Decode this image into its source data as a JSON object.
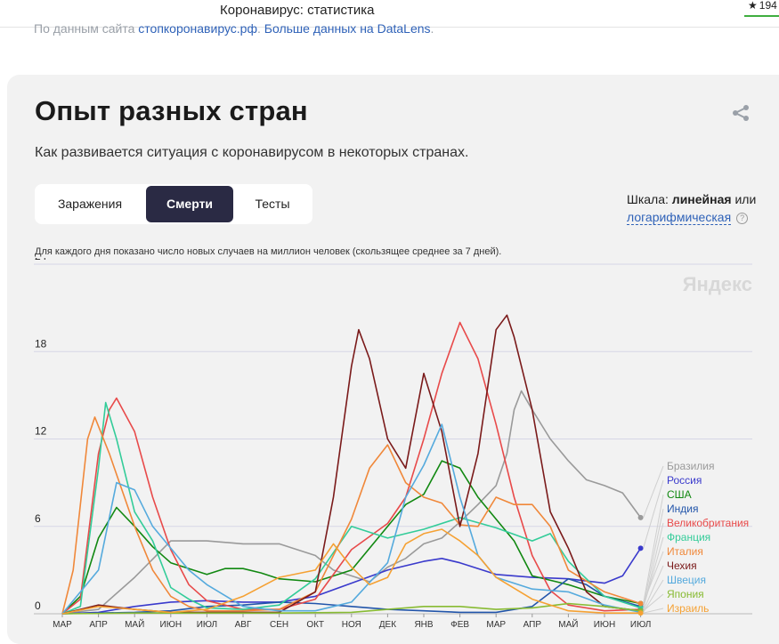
{
  "topbar": {
    "title": "Коронавирус: статистика",
    "stars": "194",
    "accent_color": "#3fae3f"
  },
  "source": {
    "prefix": "По данным сайта ",
    "link1": "стопкоронавирус.рф",
    "sep": ". ",
    "link2": "Больше данных на DataLens",
    "suffix": "."
  },
  "card": {
    "title": "Опыт разных стран",
    "subtitle": "Как развивается ситуация с коронавирусом в некоторых странах.",
    "tabs": [
      {
        "label": "Заражения",
        "active": false
      },
      {
        "label": "Смерти",
        "active": true
      },
      {
        "label": "Тесты",
        "active": false
      }
    ],
    "scale": {
      "prefix": "Шкала: ",
      "linear": "линейная",
      "or": " или",
      "log": "логарифмическая",
      "help": "?"
    },
    "note": "Для каждого дня показано число новых случаев на миллион человек (скользящее среднее за 7 дней).",
    "watermark": "Яндекс"
  },
  "chart_data": {
    "type": "line",
    "ylim": [
      0,
      24
    ],
    "yticks": [
      "0",
      "6",
      "12",
      "18",
      "24"
    ],
    "xticks": [
      "МАР",
      "АПР",
      "МАЙ",
      "ИЮН",
      "ИЮЛ",
      "АВГ",
      "СЕН",
      "ОКТ",
      "НОЯ",
      "ДЕК",
      "ЯНВ",
      "ФЕВ",
      "МАР",
      "АПР",
      "МАЙ",
      "ИЮН",
      "ИЮЛ"
    ],
    "grid": true,
    "legend_position": "right",
    "series": [
      {
        "name": "Бразилия",
        "color": "#9a9a9a",
        "end_marker": true,
        "points": [
          [
            0,
            0
          ],
          [
            1,
            0.3
          ],
          [
            2,
            2.5
          ],
          [
            3,
            5
          ],
          [
            4,
            5
          ],
          [
            5,
            4.8
          ],
          [
            6,
            4.8
          ],
          [
            7,
            4
          ],
          [
            7.5,
            3
          ],
          [
            8,
            2.6
          ],
          [
            8.5,
            2.2
          ],
          [
            9,
            3.2
          ],
          [
            9.5,
            3.8
          ],
          [
            10,
            4.8
          ],
          [
            10.5,
            5.2
          ],
          [
            11,
            6.3
          ],
          [
            11.5,
            7.5
          ],
          [
            12,
            8.8
          ],
          [
            12.3,
            11
          ],
          [
            12.5,
            14
          ],
          [
            12.7,
            15.3
          ],
          [
            13,
            14
          ],
          [
            13.5,
            12
          ],
          [
            14,
            10.5
          ],
          [
            14.5,
            9.2
          ],
          [
            15,
            8.8
          ],
          [
            15.5,
            8.3
          ],
          [
            16,
            6.6
          ]
        ]
      },
      {
        "name": "Россия",
        "color": "#3a3acc",
        "end_marker": true,
        "points": [
          [
            0,
            0
          ],
          [
            1,
            0.1
          ],
          [
            2,
            0.5
          ],
          [
            3,
            0.8
          ],
          [
            4,
            0.9
          ],
          [
            5,
            0.8
          ],
          [
            6,
            0.8
          ],
          [
            7,
            1.2
          ],
          [
            8,
            2.1
          ],
          [
            9,
            3
          ],
          [
            10,
            3.6
          ],
          [
            10.5,
            3.8
          ],
          [
            11,
            3.5
          ],
          [
            12,
            2.7
          ],
          [
            13,
            2.5
          ],
          [
            14,
            2.4
          ],
          [
            15,
            2.1
          ],
          [
            15.5,
            2.6
          ],
          [
            16,
            4.5
          ]
        ]
      },
      {
        "name": "США",
        "color": "#118811",
        "end_marker": true,
        "points": [
          [
            0,
            0
          ],
          [
            0.5,
            1.2
          ],
          [
            1,
            5.2
          ],
          [
            1.5,
            7.3
          ],
          [
            2,
            6
          ],
          [
            2.5,
            4.6
          ],
          [
            3,
            3.5
          ],
          [
            4,
            2.7
          ],
          [
            4.5,
            3.1
          ],
          [
            5,
            3.1
          ],
          [
            5.5,
            2.8
          ],
          [
            6,
            2.4
          ],
          [
            7,
            2.2
          ],
          [
            8,
            3
          ],
          [
            9,
            6
          ],
          [
            9.5,
            7.5
          ],
          [
            10,
            8.2
          ],
          [
            10.5,
            10.5
          ],
          [
            11,
            10
          ],
          [
            11.5,
            8
          ],
          [
            12,
            6.5
          ],
          [
            12.5,
            5
          ],
          [
            13,
            2.6
          ],
          [
            14,
            2
          ],
          [
            15,
            1.2
          ],
          [
            16,
            0.7
          ]
        ]
      },
      {
        "name": "Индия",
        "color": "#2255aa",
        "end_marker": true,
        "points": [
          [
            0,
            0
          ],
          [
            2,
            0.1
          ],
          [
            3,
            0.2
          ],
          [
            4,
            0.5
          ],
          [
            5,
            0.6
          ],
          [
            6,
            0.8
          ],
          [
            7,
            0.7
          ],
          [
            8,
            0.5
          ],
          [
            9,
            0.3
          ],
          [
            10,
            0.2
          ],
          [
            11,
            0.1
          ],
          [
            12,
            0.1
          ],
          [
            13,
            0.5
          ],
          [
            14,
            2.4
          ],
          [
            14.5,
            2
          ],
          [
            15,
            1.2
          ],
          [
            16,
            0.5
          ]
        ]
      },
      {
        "name": "Великобритания",
        "color": "#e84a4a",
        "end_marker": true,
        "points": [
          [
            0,
            0
          ],
          [
            0.5,
            1
          ],
          [
            1,
            11
          ],
          [
            1.3,
            14
          ],
          [
            1.5,
            14.8
          ],
          [
            2,
            12.5
          ],
          [
            2.5,
            8
          ],
          [
            3,
            4.4
          ],
          [
            3.5,
            2
          ],
          [
            4,
            0.9
          ],
          [
            5,
            0.3
          ],
          [
            6,
            0.3
          ],
          [
            7,
            1
          ],
          [
            8,
            4.4
          ],
          [
            9,
            6.2
          ],
          [
            9.5,
            8
          ],
          [
            10,
            12
          ],
          [
            10.5,
            16.5
          ],
          [
            11,
            20
          ],
          [
            11.5,
            17.5
          ],
          [
            12,
            13
          ],
          [
            12.5,
            8
          ],
          [
            13,
            4
          ],
          [
            13.5,
            1.6
          ],
          [
            14,
            0.6
          ],
          [
            15,
            0.2
          ],
          [
            16,
            0.3
          ]
        ]
      },
      {
        "name": "Франция",
        "color": "#33cc99",
        "end_marker": true,
        "points": [
          [
            0,
            0
          ],
          [
            0.5,
            0.5
          ],
          [
            1,
            10
          ],
          [
            1.2,
            14.5
          ],
          [
            1.5,
            12
          ],
          [
            2,
            7
          ],
          [
            2.5,
            5
          ],
          [
            3,
            1.8
          ],
          [
            3.5,
            1
          ],
          [
            4,
            0.4
          ],
          [
            5,
            0.3
          ],
          [
            6,
            0.6
          ],
          [
            7,
            2.4
          ],
          [
            8,
            6
          ],
          [
            9,
            5.2
          ],
          [
            9.5,
            5.5
          ],
          [
            10,
            5.8
          ],
          [
            11,
            6.6
          ],
          [
            12,
            5.9
          ],
          [
            13,
            5
          ],
          [
            13.5,
            5.5
          ],
          [
            14,
            3.6
          ],
          [
            15,
            1.2
          ],
          [
            16,
            0.4
          ]
        ]
      },
      {
        "name": "Италия",
        "color": "#f0883a",
        "end_marker": true,
        "points": [
          [
            0,
            0
          ],
          [
            0.3,
            3
          ],
          [
            0.7,
            12
          ],
          [
            0.9,
            13.5
          ],
          [
            1.3,
            11
          ],
          [
            2,
            6
          ],
          [
            2.5,
            3
          ],
          [
            3,
            1.2
          ],
          [
            3.5,
            0.5
          ],
          [
            4,
            0.2
          ],
          [
            5,
            0.2
          ],
          [
            6,
            0.3
          ],
          [
            7,
            1.5
          ],
          [
            8,
            6.5
          ],
          [
            8.5,
            10
          ],
          [
            9,
            11.6
          ],
          [
            9.5,
            9
          ],
          [
            10,
            8
          ],
          [
            10.5,
            7.6
          ],
          [
            11,
            6.1
          ],
          [
            11.5,
            6
          ],
          [
            12,
            8
          ],
          [
            12.5,
            7.5
          ],
          [
            13,
            7.5
          ],
          [
            13.5,
            6
          ],
          [
            14,
            3
          ],
          [
            15,
            1.5
          ],
          [
            16,
            0.7
          ]
        ]
      },
      {
        "name": "Чехия",
        "color": "#7a1a1a",
        "end_marker": true,
        "points": [
          [
            0,
            0
          ],
          [
            1,
            0.6
          ],
          [
            2,
            0.3
          ],
          [
            3,
            0.1
          ],
          [
            4,
            0.1
          ],
          [
            5,
            0.1
          ],
          [
            6,
            0.1
          ],
          [
            7,
            1.5
          ],
          [
            7.5,
            8
          ],
          [
            8,
            17
          ],
          [
            8.2,
            19.5
          ],
          [
            8.5,
            17.5
          ],
          [
            9,
            12
          ],
          [
            9.5,
            10
          ],
          [
            10,
            16.5
          ],
          [
            10.5,
            12.5
          ],
          [
            11,
            6
          ],
          [
            11.5,
            11
          ],
          [
            12,
            19.5
          ],
          [
            12.3,
            20.5
          ],
          [
            12.5,
            19
          ],
          [
            13,
            14
          ],
          [
            13.5,
            7
          ],
          [
            14,
            4.5
          ],
          [
            14.5,
            1.5
          ],
          [
            15,
            0.5
          ],
          [
            16,
            0.2
          ]
        ]
      },
      {
        "name": "Швеция",
        "color": "#55aadd",
        "end_marker": true,
        "points": [
          [
            0,
            0
          ],
          [
            1,
            3
          ],
          [
            1.5,
            9
          ],
          [
            2,
            8.5
          ],
          [
            2.5,
            6
          ],
          [
            3,
            4.5
          ],
          [
            3.5,
            3
          ],
          [
            4,
            2
          ],
          [
            5,
            0.5
          ],
          [
            6,
            0.2
          ],
          [
            7,
            0.2
          ],
          [
            8,
            0.8
          ],
          [
            9,
            3.5
          ],
          [
            9.5,
            8
          ],
          [
            10,
            10.2
          ],
          [
            10.5,
            13
          ],
          [
            11,
            8
          ],
          [
            11.5,
            4
          ],
          [
            12,
            2.5
          ],
          [
            13,
            1.7
          ],
          [
            14,
            1.5
          ],
          [
            15,
            0.6
          ],
          [
            16,
            0.1
          ]
        ]
      },
      {
        "name": "Япония",
        "color": "#88bb33",
        "end_marker": true,
        "points": [
          [
            0,
            0
          ],
          [
            2,
            0.05
          ],
          [
            4,
            0.05
          ],
          [
            6,
            0.05
          ],
          [
            8,
            0.1
          ],
          [
            9,
            0.3
          ],
          [
            10,
            0.5
          ],
          [
            11,
            0.5
          ],
          [
            12,
            0.3
          ],
          [
            13,
            0.4
          ],
          [
            14,
            0.7
          ],
          [
            15,
            0.5
          ],
          [
            16,
            0.2
          ]
        ]
      },
      {
        "name": "Израиль",
        "color": "#f5a133",
        "end_marker": true,
        "points": [
          [
            0,
            0
          ],
          [
            1,
            0.5
          ],
          [
            2,
            0.3
          ],
          [
            3,
            0.1
          ],
          [
            4,
            0.3
          ],
          [
            5,
            1.2
          ],
          [
            6,
            2.5
          ],
          [
            7,
            3
          ],
          [
            7.5,
            4.8
          ],
          [
            8,
            3.2
          ],
          [
            8.5,
            2
          ],
          [
            9,
            2.5
          ],
          [
            9.5,
            4.8
          ],
          [
            10,
            5.5
          ],
          [
            10.5,
            5.8
          ],
          [
            11,
            5
          ],
          [
            11.5,
            4
          ],
          [
            12,
            2.5
          ],
          [
            13,
            1
          ],
          [
            14,
            0.2
          ],
          [
            15,
            0.05
          ],
          [
            16,
            0.05
          ]
        ]
      }
    ]
  }
}
